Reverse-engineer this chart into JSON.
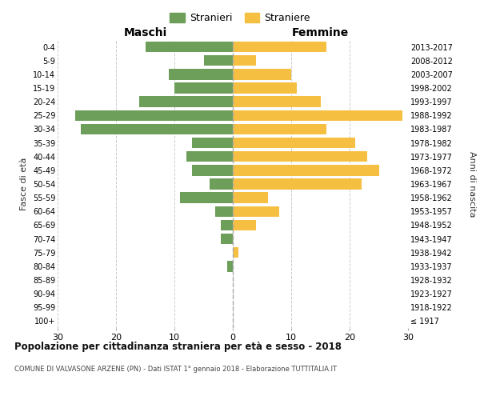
{
  "age_groups": [
    "100+",
    "95-99",
    "90-94",
    "85-89",
    "80-84",
    "75-79",
    "70-74",
    "65-69",
    "60-64",
    "55-59",
    "50-54",
    "45-49",
    "40-44",
    "35-39",
    "30-34",
    "25-29",
    "20-24",
    "15-19",
    "10-14",
    "5-9",
    "0-4"
  ],
  "birth_years": [
    "≤ 1917",
    "1918-1922",
    "1923-1927",
    "1928-1932",
    "1933-1937",
    "1938-1942",
    "1943-1947",
    "1948-1952",
    "1953-1957",
    "1958-1962",
    "1963-1967",
    "1968-1972",
    "1973-1977",
    "1978-1982",
    "1983-1987",
    "1988-1992",
    "1993-1997",
    "1998-2002",
    "2003-2007",
    "2008-2012",
    "2013-2017"
  ],
  "males": [
    0,
    0,
    0,
    0,
    1,
    0,
    2,
    2,
    3,
    9,
    4,
    7,
    8,
    7,
    26,
    27,
    16,
    10,
    11,
    5,
    15
  ],
  "females": [
    0,
    0,
    0,
    0,
    0,
    1,
    0,
    4,
    8,
    6,
    22,
    25,
    23,
    21,
    16,
    29,
    15,
    11,
    10,
    4,
    16
  ],
  "male_color": "#6d9e5a",
  "female_color": "#f5bf42",
  "title": "Popolazione per cittadinanza straniera per età e sesso - 2018",
  "subtitle": "COMUNE DI VALVASONE ARZENE (PN) - Dati ISTAT 1° gennaio 2018 - Elaborazione TUTTITALIA.IT",
  "ylabel_left": "Fasce di età",
  "ylabel_right": "Anni di nascita",
  "xlabel_left": "Maschi",
  "xlabel_right": "Femmine",
  "legend_male": "Stranieri",
  "legend_female": "Straniere",
  "xlim": 30,
  "background_color": "#ffffff",
  "grid_color": "#cccccc"
}
